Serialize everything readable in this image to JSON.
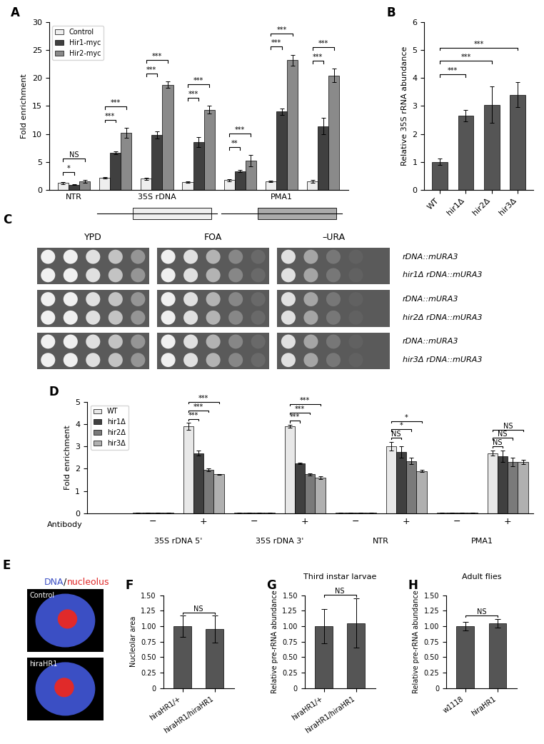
{
  "chart_data": [
    {
      "panel": "A",
      "type": "bar",
      "ylabel": "Fold enrichment",
      "ylim": [
        0,
        30
      ],
      "yticks": [
        0,
        5,
        10,
        15,
        20,
        25,
        30
      ],
      "legend": "upper left",
      "groups": [
        {
          "label": "NTR",
          "count": 1
        },
        {
          "label": "35S rDNA",
          "count": 3
        },
        {
          "label": "PMA1",
          "count": 3
        }
      ],
      "series": [
        {
          "name": "Control",
          "color": "#eeeeee",
          "values": [
            1.2,
            2.1,
            2.0,
            1.4,
            1.7,
            1.5,
            1.5
          ],
          "errors": [
            0.15,
            0.15,
            0.2,
            0.15,
            0.2,
            0.15,
            0.3
          ]
        },
        {
          "name": "Hir1-myc",
          "color": "#404040",
          "values": [
            0.9,
            6.6,
            9.8,
            8.5,
            3.3,
            14.0,
            11.4
          ],
          "errors": [
            0.1,
            0.3,
            0.6,
            0.9,
            0.2,
            0.6,
            1.5
          ]
        },
        {
          "name": "Hir2-myc",
          "color": "#8a8a8a",
          "values": [
            1.5,
            10.2,
            18.8,
            14.3,
            5.2,
            23.2,
            20.5
          ],
          "errors": [
            0.2,
            0.9,
            0.6,
            0.7,
            1.0,
            1.0,
            1.2
          ]
        }
      ],
      "significance": [
        [
          "*",
          "NS"
        ],
        [
          "***",
          "***"
        ],
        [
          "***",
          "***"
        ],
        [
          "***",
          "***"
        ],
        [
          "**",
          "***"
        ],
        [
          "***",
          "***"
        ],
        [
          "***",
          "***"
        ]
      ]
    },
    {
      "panel": "B",
      "type": "bar",
      "ylabel": "Relative 35S rRNA abundance",
      "categories": [
        "WT",
        "hir1Δ",
        "hir2Δ",
        "hir3Δ"
      ],
      "values": [
        1.0,
        2.65,
        3.05,
        3.4
      ],
      "errors": [
        0.12,
        0.2,
        0.65,
        0.45
      ],
      "color": "#555555",
      "ylim": [
        0,
        6
      ],
      "yticks": [
        0,
        1,
        2,
        3,
        4,
        5,
        6
      ],
      "significance": [
        "***",
        "***",
        "***"
      ]
    },
    {
      "panel": "D",
      "type": "bar",
      "ylabel": "Fold enrichment",
      "xlabel": "Antibody",
      "ylim": [
        0,
        5
      ],
      "yticks": [
        0,
        1,
        2,
        3,
        4,
        5
      ],
      "legend": "upper left",
      "categories": [
        "−",
        "+",
        "−",
        "+",
        "−",
        "+",
        "−",
        "+"
      ],
      "groups": [
        {
          "label": "35S rDNA 5'",
          "count": 2
        },
        {
          "label": "35S rDNA 3'",
          "count": 2
        },
        {
          "label": "NTR",
          "count": 2
        },
        {
          "label": "PMA1",
          "count": 2
        }
      ],
      "series": [
        {
          "name": "WT",
          "color": "#e8e8e8",
          "values": [
            0.02,
            3.9,
            0.02,
            3.9,
            0.02,
            3.0,
            0.02,
            2.7
          ],
          "errors": [
            0.01,
            0.15,
            0.01,
            0.06,
            0.01,
            0.2,
            0.01,
            0.12
          ]
        },
        {
          "name": "hir1Δ",
          "color": "#404040",
          "values": [
            0.02,
            2.7,
            0.02,
            2.25,
            0.02,
            2.75,
            0.02,
            2.55
          ],
          "errors": [
            0.01,
            0.1,
            0.01,
            0.03,
            0.01,
            0.25,
            0.01,
            0.25
          ]
        },
        {
          "name": "hir2Δ",
          "color": "#7a7a7a",
          "values": [
            0.02,
            1.95,
            0.02,
            1.75,
            0.02,
            2.35,
            0.02,
            2.3
          ],
          "errors": [
            0.01,
            0.06,
            0.01,
            0.05,
            0.01,
            0.15,
            0.01,
            0.2
          ]
        },
        {
          "name": "hir3Δ",
          "color": "#b0b0b0",
          "values": [
            0.02,
            1.75,
            0.02,
            1.6,
            0.02,
            1.9,
            0.02,
            2.3
          ],
          "errors": [
            0.01,
            0.02,
            0.01,
            0.06,
            0.01,
            0.06,
            0.01,
            0.1
          ]
        }
      ],
      "significance": [
        null,
        [
          "***",
          "***",
          "***"
        ],
        null,
        [
          "***",
          "***",
          "***"
        ],
        null,
        [
          "NS",
          "*",
          "*"
        ],
        null,
        [
          "NS",
          "NS",
          "NS"
        ]
      ]
    },
    {
      "panel": "F",
      "type": "bar",
      "ylabel": "Nucleolar area",
      "categories": [
        "hiraHR1/+",
        "hiraHR1/hiraHR1"
      ],
      "values": [
        1.0,
        0.95
      ],
      "errors": [
        0.17,
        0.22
      ],
      "color": "#555555",
      "ylim": [
        0,
        1.5
      ],
      "yticks": [
        0,
        0.25,
        {
          "value": 0.5,
          "label": "0.50"
        },
        0.75,
        {
          "value": 1.0,
          "label": "1.00"
        },
        1.25,
        {
          "value": 1.5,
          "label": "1.50"
        }
      ],
      "significance": [
        "NS"
      ]
    },
    {
      "panel": "G",
      "type": "bar",
      "title": "Third instar larvae",
      "ylabel": "Relative pre-rRNA abundance",
      "categories": [
        "hiraHR1/+",
        "hiraHR1/hiraHR1"
      ],
      "values": [
        1.0,
        1.05
      ],
      "errors": [
        0.28,
        0.4
      ],
      "color": "#555555",
      "ylim": [
        0,
        1.5
      ],
      "yticks": [
        0,
        0.25,
        {
          "value": 0.5,
          "label": "0.50"
        },
        0.75,
        {
          "value": 1.0,
          "label": "1.00"
        },
        1.25,
        {
          "value": 1.5,
          "label": "1.50"
        }
      ],
      "significance": [
        "NS"
      ]
    },
    {
      "panel": "H",
      "type": "bar",
      "title": "Adult flies",
      "ylabel": "Relative pre-rRNA abundance",
      "categories": [
        "w1118",
        "hiraHR1"
      ],
      "values": [
        1.0,
        1.05
      ],
      "errors": [
        0.07,
        0.07
      ],
      "color": "#555555",
      "ylim": [
        0,
        1.5
      ],
      "yticks": [
        0,
        0.25,
        {
          "value": 0.5,
          "label": "0.50"
        },
        0.75,
        {
          "value": 1.0,
          "label": "1.00"
        },
        1.25,
        {
          "value": 1.5,
          "label": "1.50"
        }
      ],
      "significance": [
        "NS"
      ]
    }
  ],
  "spot_assay": {
    "panel": "C",
    "media": [
      "YPD",
      "FOA",
      "–URA"
    ],
    "strains": [
      "rDNA::mURA3",
      "hir1Δ rDNA::mURA3",
      "rDNA::mURA3",
      "hir2Δ rDNA::mURA3",
      "rDNA::mURA3",
      "hir3Δ rDNA::mURA3"
    ]
  },
  "microscopy": {
    "panel": "E",
    "stain_labels": [
      {
        "text": "DNA",
        "color": "#3b4fc4"
      },
      {
        "text": "/",
        "color": "#000000"
      },
      {
        "text": "nucleolus",
        "color": "#e02a2a"
      }
    ],
    "conditions": [
      "Control",
      "hiraHR1"
    ]
  }
}
